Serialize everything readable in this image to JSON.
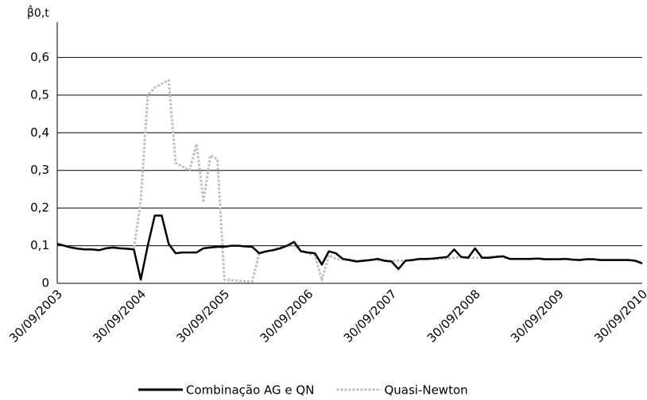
{
  "chart_data": {
    "type": "line",
    "y_label": "β̂0,t",
    "categories": [
      "30/09/2003",
      null,
      null,
      null,
      null,
      null,
      null,
      null,
      null,
      null,
      null,
      null,
      "30/09/2004",
      null,
      null,
      null,
      null,
      null,
      null,
      null,
      null,
      null,
      null,
      null,
      "30/09/2005",
      null,
      null,
      null,
      null,
      null,
      null,
      null,
      null,
      null,
      null,
      null,
      "30/09/2006",
      null,
      null,
      null,
      null,
      null,
      null,
      null,
      null,
      null,
      null,
      null,
      "30/09/2007",
      null,
      null,
      null,
      null,
      null,
      null,
      null,
      null,
      null,
      null,
      null,
      "30/09/2008",
      null,
      null,
      null,
      null,
      null,
      null,
      null,
      null,
      null,
      null,
      null,
      "30/09/2009",
      null,
      null,
      null,
      null,
      null,
      null,
      null,
      null,
      null,
      null,
      null,
      "30/09/2010"
    ],
    "series": [
      {
        "name": "Quasi-Newton",
        "color": "#c0c0c0",
        "style": "dotted",
        "values": [
          0.105,
          0.1,
          0.095,
          0.092,
          0.09,
          0.09,
          0.088,
          0.093,
          0.095,
          0.093,
          0.092,
          0.09,
          0.22,
          0.5,
          0.52,
          0.53,
          0.54,
          0.32,
          0.31,
          0.3,
          0.37,
          0.22,
          0.34,
          0.33,
          0.01,
          0.008,
          0.007,
          0.005,
          0.005,
          0.08,
          0.085,
          0.09,
          0.095,
          0.1,
          0.1,
          0.088,
          0.08,
          0.075,
          0.008,
          0.075,
          0.065,
          0.063,
          0.06,
          0.06,
          0.06,
          0.062,
          0.062,
          0.06,
          0.06,
          0.06,
          0.06,
          0.062,
          0.063,
          0.064,
          0.065,
          0.065,
          0.066,
          0.068,
          0.07,
          0.068,
          0.068,
          0.068,
          0.07,
          0.072,
          0.07,
          0.065,
          0.065,
          0.065,
          0.065,
          0.066,
          0.064,
          0.064,
          0.064,
          0.065,
          0.063,
          0.062,
          0.064,
          0.064,
          0.062,
          0.062,
          0.062,
          0.062,
          0.062,
          0.06,
          0.055
        ]
      },
      {
        "name": "Combinação AG e QN",
        "color": "#000000",
        "style": "solid",
        "values": [
          0.105,
          0.1,
          0.095,
          0.092,
          0.09,
          0.09,
          0.088,
          0.093,
          0.095,
          0.093,
          0.092,
          0.09,
          0.01,
          0.1,
          0.18,
          0.18,
          0.105,
          0.08,
          0.082,
          0.082,
          0.082,
          0.093,
          0.095,
          0.097,
          0.097,
          0.1,
          0.1,
          0.098,
          0.097,
          0.08,
          0.085,
          0.088,
          0.093,
          0.1,
          0.11,
          0.085,
          0.082,
          0.08,
          0.05,
          0.085,
          0.08,
          0.065,
          0.062,
          0.058,
          0.06,
          0.062,
          0.065,
          0.06,
          0.058,
          0.038,
          0.06,
          0.062,
          0.065,
          0.065,
          0.066,
          0.068,
          0.07,
          0.09,
          0.07,
          0.068,
          0.093,
          0.068,
          0.068,
          0.07,
          0.072,
          0.065,
          0.065,
          0.065,
          0.065,
          0.066,
          0.064,
          0.064,
          0.064,
          0.065,
          0.063,
          0.062,
          0.064,
          0.064,
          0.062,
          0.062,
          0.062,
          0.062,
          0.062,
          0.06,
          0.053
        ]
      }
    ],
    "ylim": [
      0,
      0.7
    ],
    "yticks": [
      0,
      {
        "value": 0.1,
        "label": "0,1"
      },
      {
        "value": 0.2,
        "label": "0,2"
      },
      {
        "value": 0.3,
        "label": "0,3"
      },
      {
        "value": 0.4,
        "label": "0,4"
      },
      {
        "value": 0.5,
        "label": "0,5"
      },
      {
        "value": 0.6,
        "label": "0,6"
      }
    ],
    "grid": true,
    "legend": "bottom"
  }
}
